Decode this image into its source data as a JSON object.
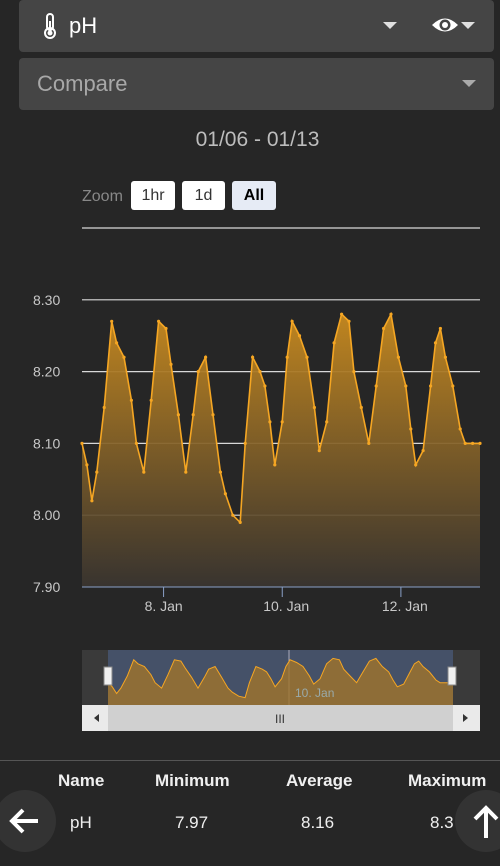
{
  "parameter_select": {
    "value": "pH",
    "icon": "thermometer-icon",
    "visibility_icon": "eye-icon"
  },
  "compare_select": {
    "placeholder": "Compare"
  },
  "date_range": "01/06 - 01/13",
  "zoom": {
    "label": "Zoom",
    "buttons": [
      "1hr",
      "1d",
      "All"
    ],
    "active": "All"
  },
  "chart_data": {
    "type": "area",
    "title": "",
    "xlabel": "",
    "ylabel": "",
    "x_tick_labels": [
      "8. Jan",
      "10. Jan",
      "12. Jan"
    ],
    "y_tick_labels": [
      "7.90",
      "8.00",
      "8.10",
      "8.20",
      "8.30"
    ],
    "ylim": [
      7.9,
      8.4
    ],
    "xlim": [
      "2024-01-06T15:00",
      "2024-01-13T08:00"
    ],
    "x_days": [
      "2024-01-06T15:00",
      "2024-01-06T17:00",
      "2024-01-06T19:00",
      "2024-01-06T21:00",
      "2024-01-07T00:00",
      "2024-01-07T03:00",
      "2024-01-07T05:00",
      "2024-01-07T08:00",
      "2024-01-07T11:00",
      "2024-01-07T13:00",
      "2024-01-07T16:00",
      "2024-01-07T19:00",
      "2024-01-07T22:00",
      "2024-01-08T01:00",
      "2024-01-08T03:00",
      "2024-01-08T06:00",
      "2024-01-08T09:00",
      "2024-01-08T12:00",
      "2024-01-08T14:00",
      "2024-01-08T17:00",
      "2024-01-08T20:00",
      "2024-01-08T23:00",
      "2024-01-09T01:00",
      "2024-01-09T04:00",
      "2024-01-09T07:00",
      "2024-01-09T09:00",
      "2024-01-09T12:00",
      "2024-01-09T15:00",
      "2024-01-09T17:00",
      "2024-01-09T19:00",
      "2024-01-09T21:00",
      "2024-01-10T00:00",
      "2024-01-10T02:00",
      "2024-01-10T04:00",
      "2024-01-10T07:00",
      "2024-01-10T10:00",
      "2024-01-10T13:00",
      "2024-01-10T15:00",
      "2024-01-10T18:00",
      "2024-01-10T21:00",
      "2024-01-11T00:00",
      "2024-01-11T03:00",
      "2024-01-11T05:00",
      "2024-01-11T08:00",
      "2024-01-11T11:00",
      "2024-01-11T14:00",
      "2024-01-11T17:00",
      "2024-01-11T20:00",
      "2024-01-11T23:00",
      "2024-01-12T02:00",
      "2024-01-12T04:00",
      "2024-01-12T06:00",
      "2024-01-12T09:00",
      "2024-01-12T12:00",
      "2024-01-12T14:00",
      "2024-01-12T16:00",
      "2024-01-12T18:00",
      "2024-01-12T21:00",
      "2024-01-13T00:00",
      "2024-01-13T02:00",
      "2024-01-13T05:00",
      "2024-01-13T08:00"
    ],
    "series": [
      {
        "values": [
          8.1,
          8.07,
          8.02,
          8.06,
          8.15,
          8.27,
          8.24,
          8.22,
          8.16,
          8.1,
          8.06,
          8.16,
          8.27,
          8.26,
          8.21,
          8.14,
          8.06,
          8.14,
          8.2,
          8.22,
          8.14,
          8.06,
          8.03,
          8.0,
          7.99,
          8.1,
          8.22,
          8.2,
          8.18,
          8.13,
          8.07,
          8.13,
          8.22,
          8.27,
          8.25,
          8.22,
          8.15,
          8.09,
          8.13,
          8.24,
          8.28,
          8.27,
          8.2,
          8.15,
          8.1,
          8.18,
          8.26,
          8.28,
          8.22,
          8.18,
          8.12,
          8.07,
          8.09,
          8.18,
          8.24,
          8.26,
          8.22,
          8.18,
          8.12,
          8.1,
          8.1,
          8.1
        ]
      }
    ],
    "legend": "none",
    "grid": true,
    "colors": {
      "line": "#f5a623",
      "fill_top": "#c88a1f"
    }
  },
  "navigator": {
    "date_label": "10. Jan",
    "scrollbar_grip": "III"
  },
  "stats": {
    "headers": [
      "Name",
      "Minimum",
      "Average",
      "Maximum"
    ],
    "row": {
      "name": "pH",
      "minimum": "7.97",
      "average": "8.16",
      "maximum": "8.3"
    }
  },
  "fab": {
    "back_icon": "arrow-left-icon",
    "up_icon": "arrow-up-icon"
  }
}
